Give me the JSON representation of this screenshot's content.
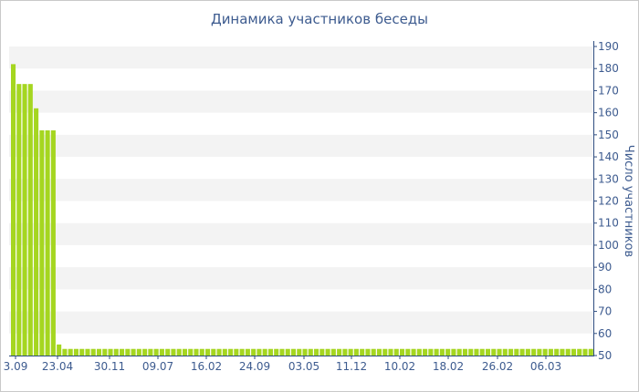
{
  "chart_data": {
    "type": "bar",
    "title": "Динамика участников беседы",
    "xlabel": "",
    "ylabel": "Число участников",
    "ylim": [
      50,
      190
    ],
    "y_ticks": [
      50,
      60,
      70,
      80,
      90,
      100,
      110,
      120,
      130,
      140,
      150,
      160,
      170,
      180,
      190
    ],
    "x_tick_labels": [
      "3.09",
      "23.04",
      "30.11",
      "09.07",
      "16.02",
      "24.09",
      "03.05",
      "11.12",
      "10.02",
      "18.02",
      "26.02",
      "06.03"
    ],
    "grid": "horizontal bands",
    "y_axis_position": "right",
    "colors": {
      "bar": "#a5d620",
      "band": "#f3f3f3",
      "text": "#3d5b8f",
      "axis": "#2f4d80"
    },
    "values": [
      182,
      173,
      173,
      173,
      162,
      152,
      152,
      152,
      55,
      53,
      53,
      53,
      53,
      53,
      53,
      53,
      53,
      53,
      53,
      53,
      53,
      53,
      53,
      53,
      53,
      53,
      53,
      53,
      53,
      53,
      53,
      53,
      53,
      53,
      53,
      53,
      53,
      53,
      53,
      53,
      53,
      53,
      53,
      53,
      53,
      53,
      53,
      53,
      53,
      53,
      53,
      53,
      53,
      53,
      53,
      53,
      53,
      53,
      53,
      53,
      53,
      53,
      53,
      53,
      53,
      53,
      53,
      53,
      53,
      53,
      53,
      53,
      53,
      53,
      53,
      53,
      53,
      53,
      53,
      53,
      53,
      53,
      53,
      53,
      53,
      53,
      53,
      53,
      53,
      53,
      53,
      53,
      53,
      53,
      53,
      53,
      53,
      53,
      53,
      53,
      53,
      53
    ]
  }
}
